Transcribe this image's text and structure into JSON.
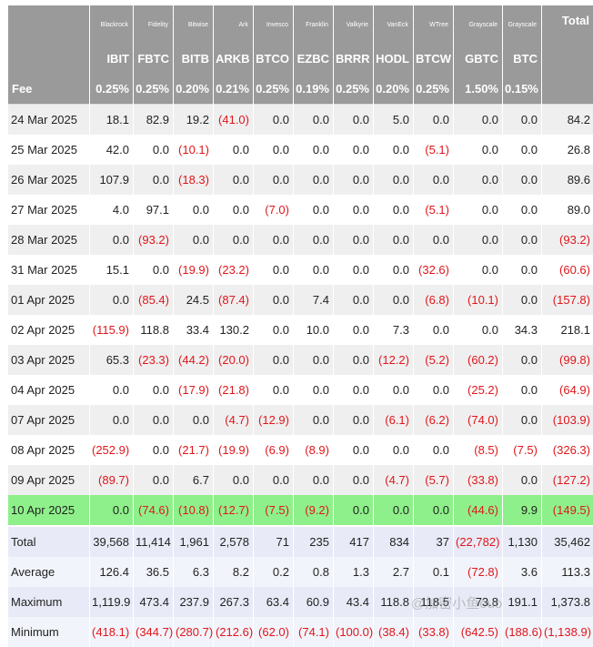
{
  "issuers": [
    "Blackrock",
    "Fidelity",
    "Bitwise",
    "Ark",
    "Invesco",
    "Franklin",
    "Valkyrie",
    "VanEck",
    "WTree",
    "Grayscale",
    "Grayscale"
  ],
  "total_header": "Total",
  "tickers": [
    "IBIT",
    "FBTC",
    "BITB",
    "ARKB",
    "BTCO",
    "EZBC",
    "BRRR",
    "HODL",
    "BTCW",
    "GBTC",
    "BTC"
  ],
  "fee_label": "Fee",
  "fees": [
    "0.25%",
    "0.25%",
    "0.20%",
    "0.21%",
    "0.25%",
    "0.19%",
    "0.25%",
    "0.20%",
    "0.25%",
    "1.50%",
    "0.15%"
  ],
  "rows": [
    {
      "date": "24 Mar 2025",
      "values": [
        "18.1",
        "82.9",
        "19.2",
        "(41.0)",
        "0.0",
        "0.0",
        "0.0",
        "5.0",
        "0.0",
        "0.0",
        "0.0"
      ],
      "total": "84.2"
    },
    {
      "date": "25 Mar 2025",
      "values": [
        "42.0",
        "0.0",
        "(10.1)",
        "0.0",
        "0.0",
        "0.0",
        "0.0",
        "0.0",
        "(5.1)",
        "0.0",
        "0.0"
      ],
      "total": "26.8"
    },
    {
      "date": "26 Mar 2025",
      "values": [
        "107.9",
        "0.0",
        "(18.3)",
        "0.0",
        "0.0",
        "0.0",
        "0.0",
        "0.0",
        "0.0",
        "0.0",
        "0.0"
      ],
      "total": "89.6"
    },
    {
      "date": "27 Mar 2025",
      "values": [
        "4.0",
        "97.1",
        "0.0",
        "0.0",
        "(7.0)",
        "0.0",
        "0.0",
        "0.0",
        "(5.1)",
        "0.0",
        "0.0"
      ],
      "total": "89.0"
    },
    {
      "date": "28 Mar 2025",
      "values": [
        "0.0",
        "(93.2)",
        "0.0",
        "0.0",
        "0.0",
        "0.0",
        "0.0",
        "0.0",
        "0.0",
        "0.0",
        "0.0"
      ],
      "total": "(93.2)"
    },
    {
      "date": "31 Mar 2025",
      "values": [
        "15.1",
        "0.0",
        "(19.9)",
        "(23.2)",
        "0.0",
        "0.0",
        "0.0",
        "0.0",
        "(32.6)",
        "0.0",
        "0.0"
      ],
      "total": "(60.6)"
    },
    {
      "date": "01 Apr 2025",
      "values": [
        "0.0",
        "(85.4)",
        "24.5",
        "(87.4)",
        "0.0",
        "7.4",
        "0.0",
        "0.0",
        "(6.8)",
        "(10.1)",
        "0.0"
      ],
      "total": "(157.8)"
    },
    {
      "date": "02 Apr 2025",
      "values": [
        "(115.9)",
        "118.8",
        "33.4",
        "130.2",
        "0.0",
        "10.0",
        "0.0",
        "7.3",
        "0.0",
        "0.0",
        "34.3"
      ],
      "total": "218.1"
    },
    {
      "date": "03 Apr 2025",
      "values": [
        "65.3",
        "(23.3)",
        "(44.2)",
        "(20.0)",
        "0.0",
        "0.0",
        "0.0",
        "(12.2)",
        "(5.2)",
        "(60.2)",
        "0.0"
      ],
      "total": "(99.8)"
    },
    {
      "date": "04 Apr 2025",
      "values": [
        "0.0",
        "0.0",
        "(17.9)",
        "(21.8)",
        "0.0",
        "0.0",
        "0.0",
        "0.0",
        "0.0",
        "(25.2)",
        "0.0"
      ],
      "total": "(64.9)"
    },
    {
      "date": "07 Apr 2025",
      "values": [
        "0.0",
        "0.0",
        "0.0",
        "(4.7)",
        "(12.9)",
        "0.0",
        "0.0",
        "(6.1)",
        "(6.2)",
        "(74.0)",
        "0.0"
      ],
      "total": "(103.9)"
    },
    {
      "date": "08 Apr 2025",
      "values": [
        "(252.9)",
        "0.0",
        "(21.7)",
        "(19.9)",
        "(6.9)",
        "(8.9)",
        "0.0",
        "0.0",
        "0.0",
        "(8.5)",
        "(7.5)"
      ],
      "total": "(326.3)"
    },
    {
      "date": "09 Apr 2025",
      "values": [
        "(89.7)",
        "0.0",
        "6.7",
        "0.0",
        "0.0",
        "0.0",
        "0.0",
        "(4.7)",
        "(5.7)",
        "(33.8)",
        "0.0"
      ],
      "total": "(127.2)"
    },
    {
      "date": "10 Apr 2025",
      "values": [
        "0.0",
        "(74.6)",
        "(10.8)",
        "(12.7)",
        "(7.5)",
        "(9.2)",
        "0.0",
        "0.0",
        "0.0",
        "(44.6)",
        "9.9"
      ],
      "total": "(149.5)",
      "highlight": true
    }
  ],
  "summary": [
    {
      "label": "Total",
      "values": [
        "39,568",
        "11,414",
        "1,961",
        "2,578",
        "71",
        "235",
        "417",
        "834",
        "37",
        "(22,782)",
        "1,130"
      ],
      "total": "35,462"
    },
    {
      "label": "Average",
      "values": [
        "126.4",
        "36.5",
        "6.3",
        "8.2",
        "0.2",
        "0.8",
        "1.3",
        "2.7",
        "0.1",
        "(72.8)",
        "3.6"
      ],
      "total": "113.3"
    },
    {
      "label": "Maximum",
      "values": [
        "1,119.9",
        "473.4",
        "237.9",
        "267.3",
        "63.4",
        "60.9",
        "43.4",
        "118.8",
        "118.5",
        "73.8",
        "191.1"
      ],
      "total": "1,373.8"
    },
    {
      "label": "Minimum",
      "values": [
        "(418.1)",
        "(344.7)",
        "(280.7)",
        "(212.6)",
        "(62.0)",
        "(74.1)",
        "(100.0)",
        "(38.4)",
        "(33.8)",
        "(642.5)",
        "(188.6)"
      ],
      "total": "(1,138.9)"
    }
  ],
  "watermark": "@加密小鱼ouo",
  "colors": {
    "header_bg": "#9a9a9a",
    "negative": "#e0161b",
    "highlight": "#8ef08a",
    "summary_bg": "#e8ebf7"
  }
}
